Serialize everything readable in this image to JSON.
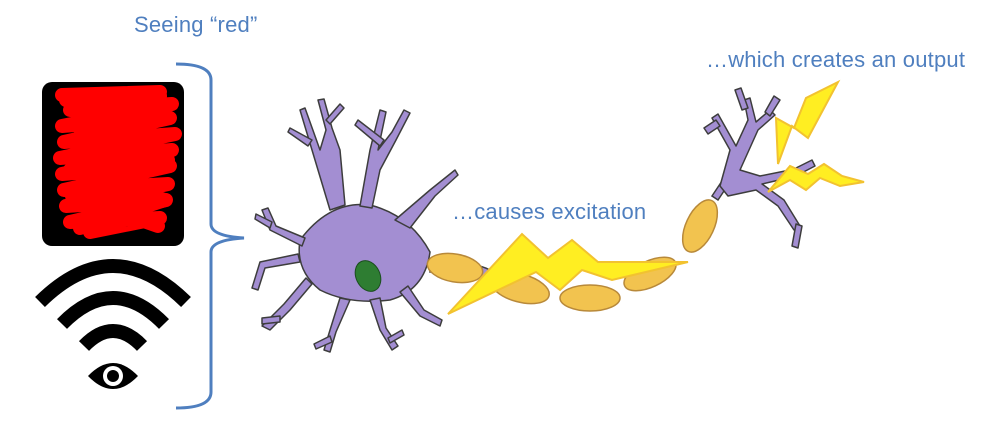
{
  "title": "Seeing “red”",
  "labels": {
    "seeing": "Seeing “red”",
    "excitation": "…causes excitation",
    "output": "…which creates an output"
  },
  "colors": {
    "label_text": "#4f7fbf",
    "bracket": "#4f7fbf",
    "neuron_fill": "#a38ed2",
    "neuron_stroke": "#3d3d3d",
    "nucleus": "#2e7d32",
    "myelin": "#f2c34f",
    "lightning_fill": "#ffee22",
    "lightning_stroke": "#f2c230",
    "red_scribble": "#ff0000",
    "icon_black": "#000000"
  },
  "icons": {
    "stimulus": "red-color-swatch-icon",
    "sensor": "eye-signal-icon"
  }
}
